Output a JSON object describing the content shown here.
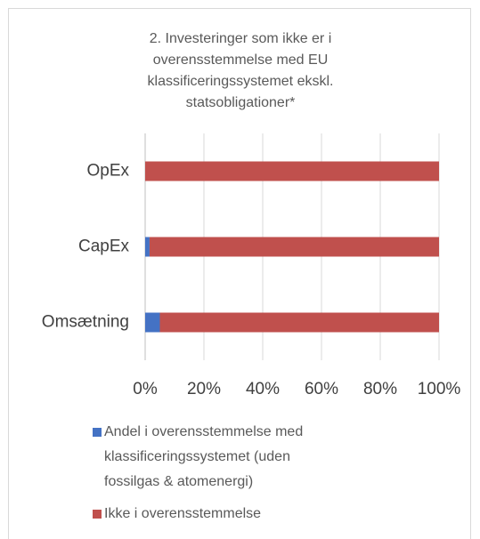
{
  "chart_data": {
    "type": "stacked_barh",
    "title": "2. Investeringer som ikke er i overensstemmelse med EU klassificeringssystemet ekskl. statsobligationer*",
    "categories": [
      "OpEx",
      "CapEx",
      "Omsætning"
    ],
    "series": [
      {
        "name": "Andel i overensstemmelse med klassificeringssystemet (uden fossilgas & atomenergi)",
        "color": "#4472c4",
        "values": [
          0,
          1.5,
          5
        ]
      },
      {
        "name": "Ikke i overensstemmelse",
        "color": "#c0504d",
        "values": [
          100,
          98.5,
          95
        ]
      }
    ],
    "xlim": [
      0,
      100
    ],
    "xticks": [
      {
        "value": 0,
        "label": "0%"
      },
      {
        "value": 20,
        "label": "20%"
      },
      {
        "value": 40,
        "label": "40%"
      },
      {
        "value": 60,
        "label": "60%"
      },
      {
        "value": 80,
        "label": "80%"
      },
      {
        "value": 100,
        "label": "100%"
      }
    ],
    "grid": true
  }
}
